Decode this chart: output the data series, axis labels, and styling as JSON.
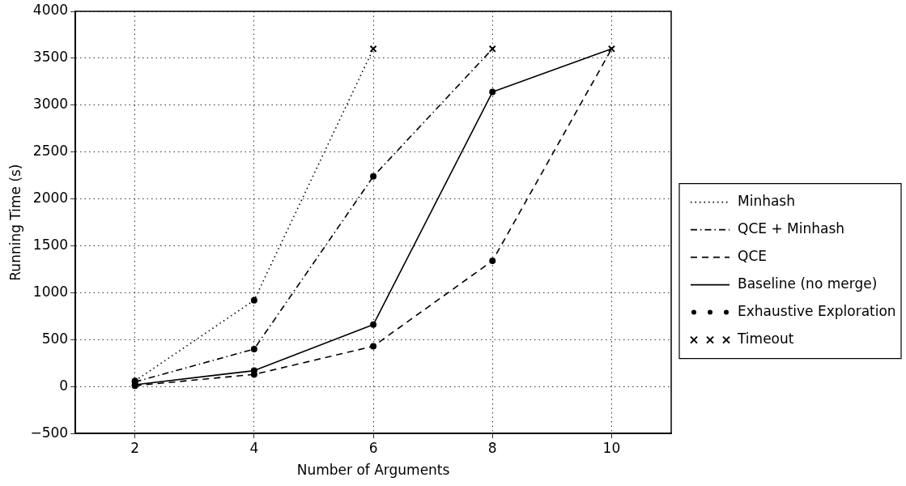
{
  "chart_data": {
    "type": "line",
    "xlabel": "Number of Arguments",
    "ylabel": "Running Time (s)",
    "xlim": [
      1,
      11
    ],
    "xticks": [
      2,
      4,
      6,
      8,
      10
    ],
    "ylim": [
      -500,
      4000
    ],
    "yticks": [
      {
        "value": -500,
        "label": "−500"
      },
      0,
      500,
      1000,
      1500,
      2000,
      2500,
      3000,
      3500,
      4000
    ],
    "grid": true,
    "legend": "right",
    "series": [
      {
        "name": "Minhash",
        "color": "#000000",
        "line_style": "dotted",
        "marker": "none",
        "x": [
          2,
          4,
          6
        ],
        "values": [
          60,
          920,
          3600
        ]
      },
      {
        "name": "QCE + Minhash",
        "color": "#000000",
        "line_style": "dashdot",
        "marker": "none",
        "x": [
          2,
          4,
          6,
          8
        ],
        "values": [
          50,
          400,
          2240,
          3600
        ]
      },
      {
        "name": "QCE",
        "color": "#000000",
        "line_style": "dashed",
        "marker": "none",
        "x": [
          2,
          4,
          6,
          8,
          10
        ],
        "values": [
          10,
          130,
          430,
          1340,
          3600
        ]
      },
      {
        "name": "Baseline (no merge)",
        "color": "#000000",
        "line_style": "solid",
        "marker": "none",
        "x": [
          2,
          4,
          6,
          8,
          10
        ],
        "values": [
          20,
          170,
          660,
          3140,
          3600
        ]
      },
      {
        "name": "Exhaustive Exploration",
        "type": "scatter",
        "color": "#000000",
        "marker": "circle",
        "x": [
          2,
          4,
          2,
          4,
          6,
          2,
          4,
          6,
          8,
          2,
          4,
          6,
          8
        ],
        "values": [
          60,
          920,
          50,
          400,
          2240,
          10,
          130,
          430,
          1340,
          20,
          170,
          660,
          3140
        ]
      },
      {
        "name": "Timeout",
        "type": "scatter",
        "color": "#000000",
        "marker": "cross",
        "x": [
          6,
          8,
          10
        ],
        "values": [
          3600,
          3600,
          3600
        ]
      }
    ]
  }
}
